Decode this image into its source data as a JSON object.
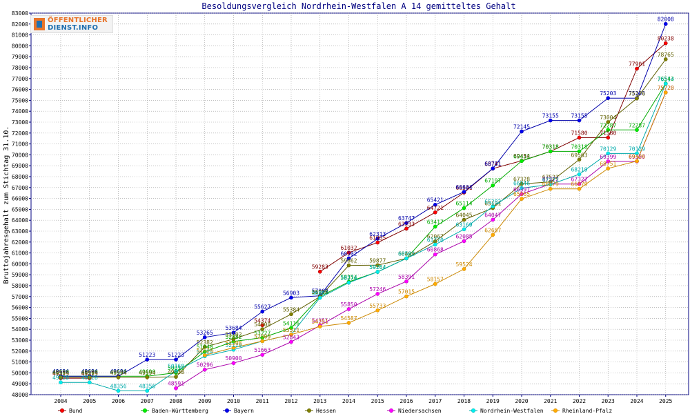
{
  "logo": {
    "line1": "ÖFFENTLICHER",
    "line2": "DIENST.INFO"
  },
  "chart_data": {
    "type": "line",
    "title": "Besoldungsvergleich Nordrhein-Westfalen A 14 gemitteltes Gehalt",
    "xlabel": "",
    "ylabel": "Bruttojahresgehalt zum Stichtag 31.10.",
    "ylim": [
      48000,
      83000
    ],
    "ytick_step": 1000,
    "grid": true,
    "legend_position": "bottom",
    "x": [
      2004,
      2005,
      2006,
      2007,
      2008,
      2009,
      2010,
      2011,
      2012,
      2013,
      2014,
      2015,
      2016,
      2017,
      2018,
      2019,
      2020,
      2021,
      2022,
      2023,
      2024,
      2025
    ],
    "series": [
      {
        "name": "Bund",
        "color": "#ff0000",
        "line_color": "#800000",
        "values": [
          49513,
          49513,
          null,
          null,
          null,
          null,
          null,
          54374,
          null,
          59283,
          61032,
          61955,
          63233,
          64721,
          66541,
          68741,
          69454,
          70318,
          71580,
          71580,
          77901,
          80238
        ]
      },
      {
        "name": "Baden-Württemberg",
        "color": "#00ee00",
        "line_color": "#00aa00",
        "values": [
          49690,
          49690,
          49690,
          49690,
          50011,
          51940,
          52882,
          53227,
          54116,
          56998,
          58354,
          59264,
          60502,
          63417,
          65114,
          67197,
          69433,
          70318,
          70318,
          72287,
          72287,
          76543
        ]
      },
      {
        "name": "Bayern",
        "color": "#0000ee",
        "line_color": "#0000aa",
        "values": [
          49694,
          49694,
          49694,
          51223,
          51223,
          53265,
          53684,
          55627,
          56903,
          57069,
          60502,
          62313,
          63747,
          65421,
          66604,
          68751,
          72145,
          73155,
          73155,
          75203,
          75203,
          82008
        ]
      },
      {
        "name": "Hessen",
        "color": "#808000",
        "line_color": "#606000",
        "values": [
          49594,
          49594,
          49594,
          49594,
          49638,
          52382,
          53102,
          54008,
          55384,
          56999,
          59862,
          59877,
          60499,
          62067,
          64045,
          65121,
          67328,
          67522,
          69563,
          73004,
          75176,
          78765
        ]
      },
      {
        "name": "Niedersachsen",
        "color": "#ff00ff",
        "line_color": "#aa00aa",
        "values": [
          null,
          null,
          null,
          null,
          48591,
          50296,
          50900,
          51663,
          52843,
          54351,
          55850,
          57246,
          58391,
          60868,
          62085,
          64047,
          66397,
          67322,
          67322,
          69399,
          69399,
          75720
        ]
      },
      {
        "name": "Nordrhein-Westfalen",
        "color": "#00eeee",
        "line_color": "#00aaaa",
        "values": [
          49128,
          49128,
          48356,
          48356,
          50168,
          51524,
          52129,
          52909,
          53511,
          56887,
          58274,
          59264,
          60502,
          61770,
          63169,
          65282,
          66946,
          67277,
          68219,
          70129,
          70129,
          76514
        ]
      },
      {
        "name": "Rheinland-Pfalz",
        "color": "#ffaa00",
        "line_color": "#cc8800",
        "values": [
          null,
          null,
          null,
          null,
          null,
          51624,
          52308,
          52909,
          53511,
          54251,
          54587,
          55733,
          57015,
          58157,
          59524,
          62657,
          65965,
          66879,
          66879,
          68751,
          69426,
          75720
        ]
      }
    ]
  }
}
